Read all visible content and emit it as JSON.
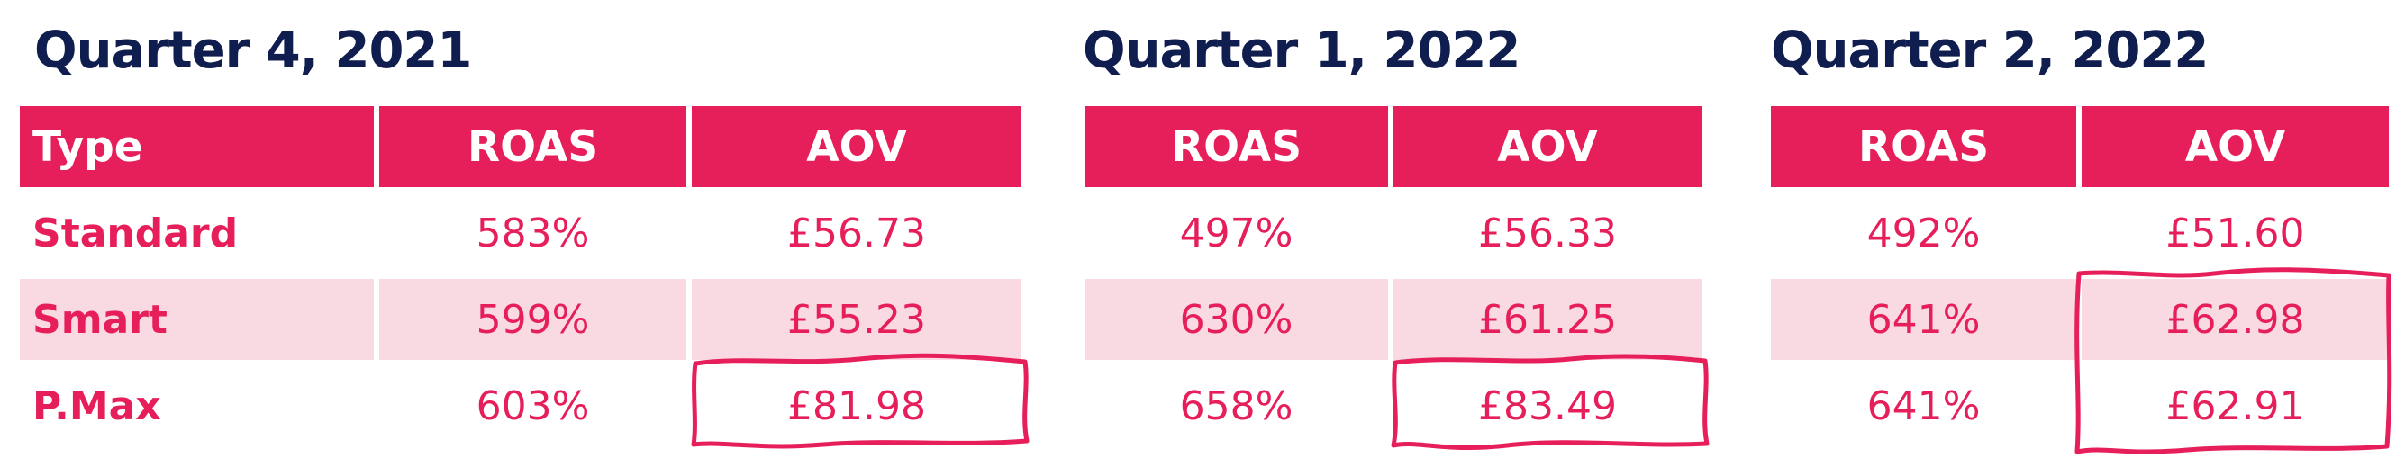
{
  "colors": {
    "brand_navy": "#0f1d4f",
    "accent_pink": "#e61f5a",
    "alt_row_bg": "#f9dae3",
    "header_text": "#ffffff"
  },
  "quarters": [
    {
      "title": "Quarter 4, 2021",
      "headers": [
        "Type",
        "ROAS",
        "AOV"
      ],
      "rows": [
        [
          "Standard",
          "583%",
          "£56.73"
        ],
        [
          "Smart",
          "599%",
          "£55.23"
        ],
        [
          "P.Max",
          "603%",
          "£81.98"
        ]
      ]
    },
    {
      "title": "Quarter 1, 2022",
      "headers": [
        "ROAS",
        "AOV"
      ],
      "rows": [
        [
          "497%",
          "£56.33"
        ],
        [
          "630%",
          "£61.25"
        ],
        [
          "658%",
          "£83.49"
        ]
      ]
    },
    {
      "title": "Quarter 2, 2022",
      "headers": [
        "ROAS",
        "AOV"
      ],
      "rows": [
        [
          "492%",
          "£51.60"
        ],
        [
          "641%",
          "£62.98"
        ],
        [
          "641%",
          "£62.91"
        ]
      ]
    }
  ]
}
